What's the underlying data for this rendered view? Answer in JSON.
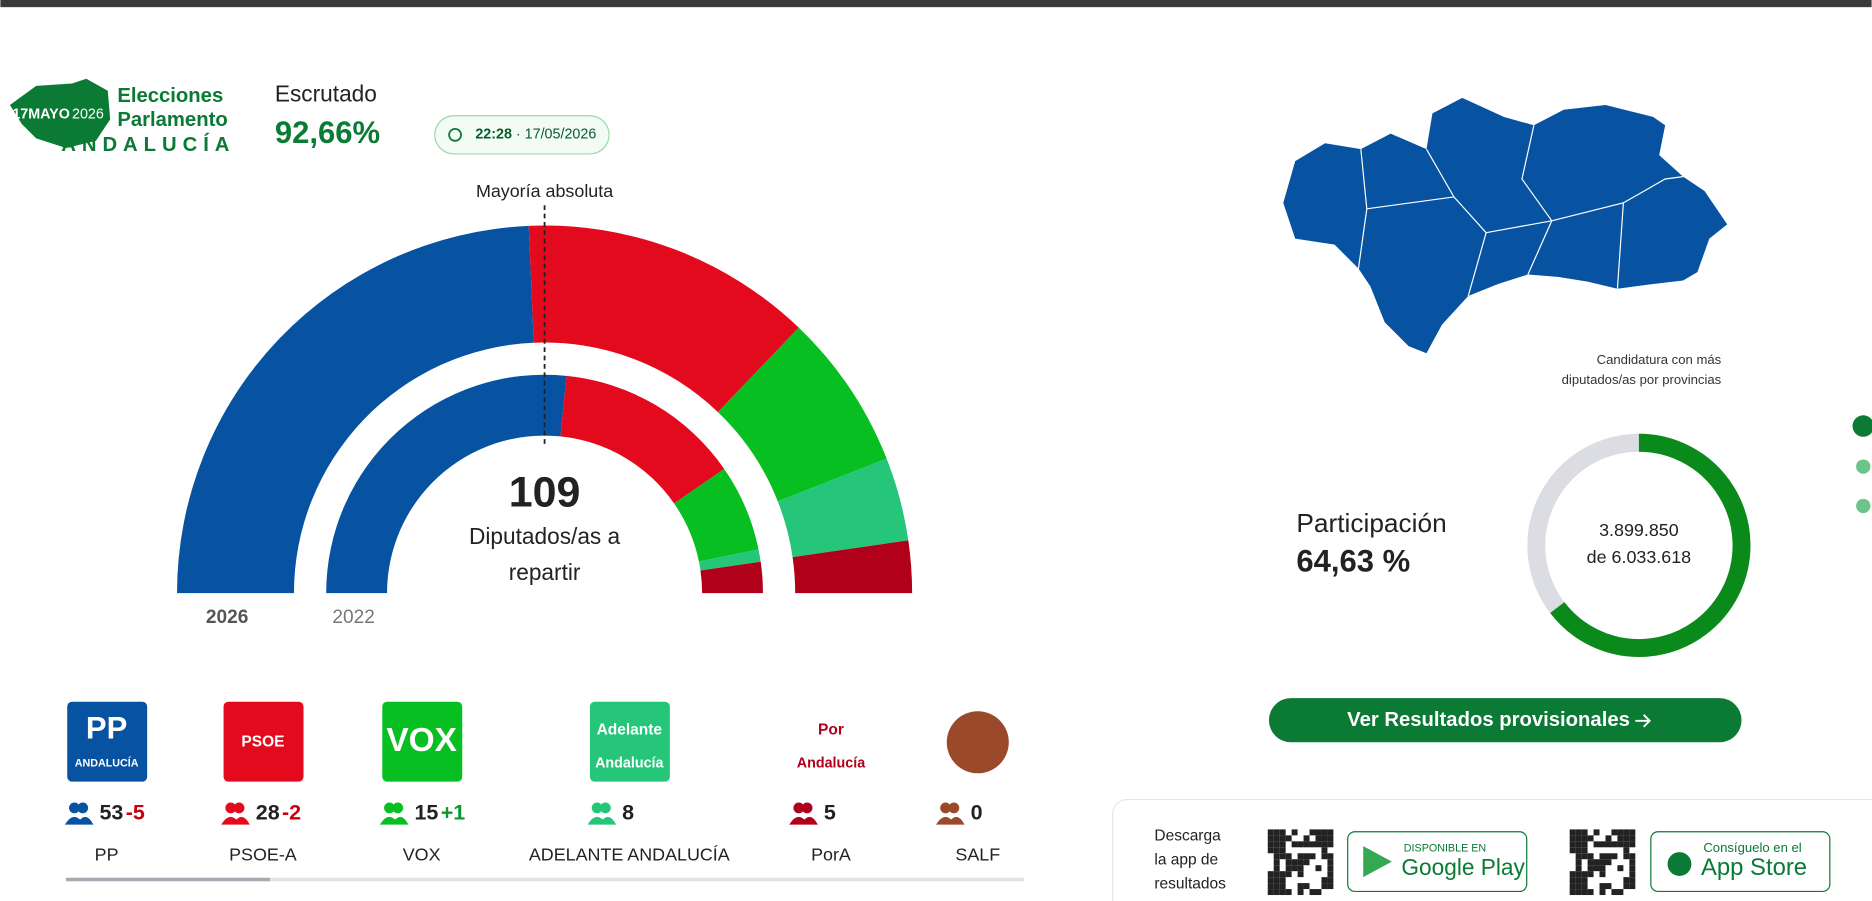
{
  "header": {
    "logo_date": "17MAYO",
    "logo_year": "2026",
    "logo_line1": "Elecciones",
    "logo_line2": "Parlamento",
    "logo_region": "ANDALUCÍA"
  },
  "scrutiny": {
    "label": "Escrutado",
    "value": "92,66%",
    "time": "22:28",
    "date": "· 17/05/2026"
  },
  "hemicycle": {
    "majority_label": "Mayoría absoluta",
    "total": 109,
    "caption_1": "Diputados/as a",
    "caption_2": "repartir",
    "ring_labels": [
      "2026",
      "2022"
    ]
  },
  "parties": [
    {
      "name": "PP",
      "logo": "PP",
      "logo_sub": "ANDALUCÍA",
      "seats": 53,
      "change": "-5",
      "seats_2022": 58,
      "color": "#0753a1"
    },
    {
      "name": "PSOE-A",
      "logo": "PSOE",
      "seats": 28,
      "change": "-2",
      "seats_2022": 30,
      "color": "#e20a1c"
    },
    {
      "name": "VOX",
      "logo": "VOX",
      "seats": 15,
      "change": "+1",
      "seats_2022": 14,
      "color": "#08bf22"
    },
    {
      "name": "ADELANTE ANDALUCÍA",
      "logo": "Adelante",
      "logo_sub": "Andalucía",
      "seats": 8,
      "seats_2022": 2,
      "color": "#25c67a"
    },
    {
      "name": "PorA",
      "logo": "Por",
      "logo_sub": "Andalucía",
      "seats": 5,
      "seats_2022": 5,
      "color": "#b0001a"
    },
    {
      "name": "SALF",
      "seats": 0,
      "color": "#9a4a2a"
    }
  ],
  "map": {
    "caption_1": "Candidatura con más",
    "caption_2": "diputados/as por provincias"
  },
  "participation": {
    "title": "Participación",
    "percent": {
      "value": 64.63,
      "label": "64,63 %"
    },
    "votes": "3.899.850",
    "census": "de 6.033.618"
  },
  "cta": "Ver Resultados provisionales",
  "app": {
    "text": [
      "Descarga",
      "la app de",
      "resultados"
    ],
    "google_small": "DISPONIBLE EN",
    "google": "Google Play",
    "apple_small": "Consíguelo en el",
    "apple": "App Store"
  }
}
